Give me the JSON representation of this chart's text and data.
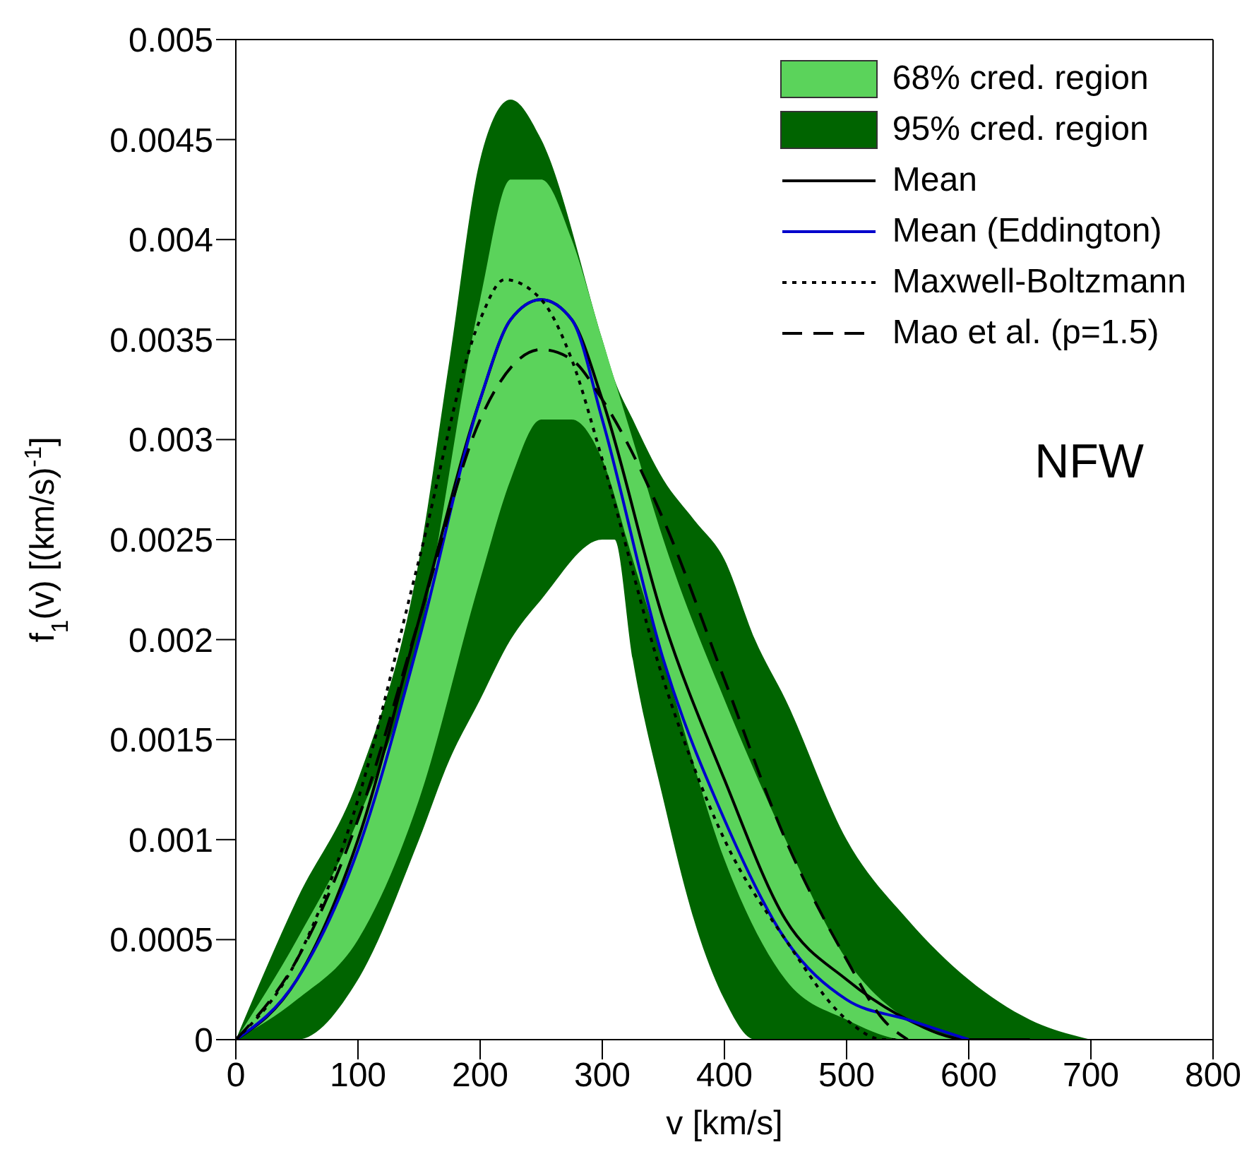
{
  "chart_data": {
    "type": "line",
    "xlabel": "v [km/s]",
    "ylabel": "f$_{1}$(v) [(km/s)$^{-1}$]",
    "xlim": [
      0,
      800
    ],
    "ylim": [
      0,
      0.005
    ],
    "xticks": [
      0,
      100,
      200,
      300,
      400,
      500,
      600,
      700,
      800
    ],
    "yticks": [
      0,
      0.0005,
      0.001,
      0.0015,
      0.002,
      0.0025,
      0.003,
      0.0035,
      0.004,
      0.0045,
      0.005
    ],
    "legend": "top right",
    "annotations": [
      "NFW"
    ],
    "series": [
      {
        "name": "68% cred. region",
        "type": "area",
        "color": "#5bd35b",
        "x": [
          0,
          50,
          100,
          150,
          200,
          225,
          250,
          275,
          300,
          325,
          350,
          400,
          450,
          500,
          550,
          600,
          650
        ],
        "values": [
          null,
          null,
          null,
          null,
          null,
          null,
          null,
          null,
          null,
          null,
          null,
          null,
          null,
          null,
          null,
          null,
          null
        ],
        "lower": [
          0,
          0.0002,
          0.0005,
          0.0012,
          0.0023,
          0.0028,
          0.0031,
          0.0031,
          0.0029,
          0.0024,
          0.0019,
          0.0009,
          0.0003,
          0.0001,
          0,
          0,
          0
        ],
        "upper": [
          0,
          0.0005,
          0.0011,
          0.002,
          0.0037,
          0.0043,
          0.0043,
          0.004,
          0.0035,
          0.003,
          0.0025,
          0.0017,
          0.001,
          0.0004,
          0.0001,
          0,
          0
        ]
      },
      {
        "name": "95% cred. region",
        "type": "area",
        "color": "#006400",
        "x": [
          0,
          50,
          100,
          150,
          175,
          200,
          225,
          250,
          300,
          310,
          325,
          350,
          375,
          400,
          425,
          450,
          500,
          550,
          600,
          650,
          700
        ],
        "values": [
          null,
          null,
          null,
          null,
          null,
          null,
          null,
          null,
          null,
          null,
          null,
          null,
          null,
          null,
          null,
          null,
          null,
          null,
          null,
          null,
          null
        ],
        "lower": [
          0,
          0,
          0.0003,
          0.001,
          0.0014,
          0.0017,
          0.002,
          0.0022,
          0.0025,
          0.0025,
          0.0019,
          0.0012,
          0.0006,
          0.0002,
          0,
          0,
          0,
          0,
          0,
          0,
          0
        ],
        "upper": [
          0,
          0.0007,
          0.0013,
          0.0024,
          0.0034,
          0.0044,
          0.0047,
          0.0045,
          0.0035,
          0.0033,
          0.0031,
          0.0028,
          0.0026,
          0.0024,
          0.002,
          0.0017,
          0.001,
          0.0006,
          0.0003,
          0.0001,
          0
        ]
      },
      {
        "name": "Mean",
        "color": "#000000",
        "line_style": "solid",
        "x": [
          0,
          50,
          100,
          150,
          200,
          225,
          250,
          275,
          300,
          350,
          400,
          450,
          500,
          550,
          600,
          650
        ],
        "values": [
          0,
          0.0003,
          0.001,
          0.0021,
          0.0032,
          0.0036,
          0.0037,
          0.0036,
          0.0032,
          0.0021,
          0.0013,
          0.0006,
          0.0003,
          0.0001,
          0,
          0
        ]
      },
      {
        "name": "Mean (Eddington)",
        "color": "#0000cc",
        "line_style": "solid",
        "x": [
          0,
          50,
          100,
          150,
          200,
          225,
          250,
          275,
          300,
          350,
          400,
          450,
          500,
          550,
          600
        ],
        "values": [
          0,
          0.0003,
          0.00095,
          0.002,
          0.0032,
          0.0036,
          0.0037,
          0.0036,
          0.0031,
          0.0019,
          0.0011,
          0.0005,
          0.0002,
          0.0001,
          0
        ]
      },
      {
        "name": "Maxwell-Boltzmann",
        "color": "#000000",
        "line_style": "dotted",
        "x": [
          0,
          50,
          100,
          150,
          200,
          220,
          250,
          275,
          300,
          350,
          400,
          450,
          500,
          530,
          540
        ],
        "values": [
          0,
          0.0004,
          0.0012,
          0.0024,
          0.0036,
          0.0038,
          0.0037,
          0.0034,
          0.0029,
          0.0018,
          0.001,
          0.0005,
          0.0001,
          0,
          0
        ]
      },
      {
        "name": "Mao et al. (p=1.5)",
        "color": "#000000",
        "line_style": "dashed",
        "x": [
          0,
          50,
          100,
          150,
          200,
          250,
          275,
          300,
          350,
          400,
          450,
          500,
          530,
          550
        ],
        "values": [
          0,
          0.0004,
          0.0011,
          0.0021,
          0.0031,
          0.00345,
          0.0034,
          0.0032,
          0.0026,
          0.0018,
          0.001,
          0.0004,
          0.0001,
          0
        ]
      }
    ]
  }
}
